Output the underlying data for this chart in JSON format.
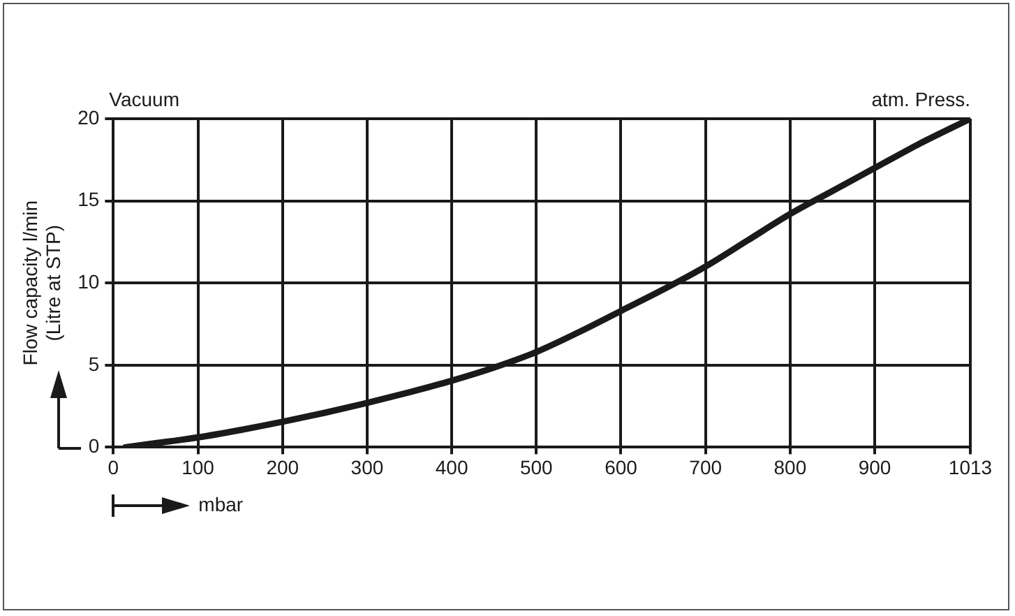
{
  "chart_data": {
    "type": "line",
    "xlabel": "mbar",
    "ylabel": "Flow capacity l/min\n(Litre at STP)",
    "annotations": [
      "Vacuum",
      "atm. Press."
    ],
    "series": [
      {
        "color": "#1a1a1a",
        "x": [
          14,
          50,
          100,
          150,
          200,
          250,
          300,
          350,
          400,
          450,
          500,
          550,
          600,
          650,
          700,
          750,
          800,
          850,
          900,
          950,
          1013
        ],
        "values": [
          0,
          0.25,
          0.6,
          1.05,
          1.55,
          2.1,
          2.7,
          3.35,
          4.05,
          4.85,
          5.8,
          7.0,
          8.3,
          9.6,
          11.0,
          12.6,
          14.2,
          15.6,
          17.0,
          18.4,
          20
        ]
      }
    ],
    "xlim": [
      0,
      1013
    ],
    "xticks": [
      0,
      100,
      200,
      300,
      400,
      500,
      600,
      700,
      800,
      900,
      1013
    ],
    "ylim": [
      0,
      20
    ],
    "yticks": [
      0,
      5,
      10,
      15,
      20
    ],
    "grid": true,
    "legend": false,
    "marker": "none",
    "line_style": "solid"
  }
}
